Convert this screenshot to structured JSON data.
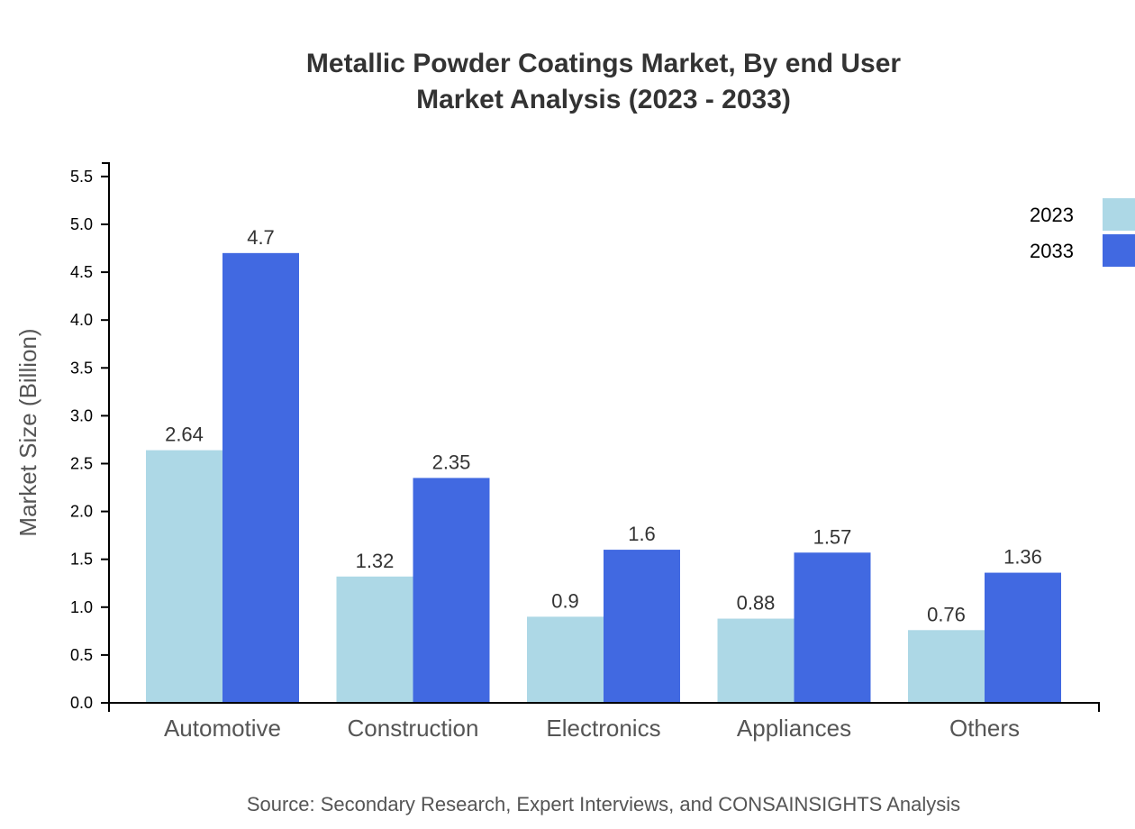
{
  "chart_data": {
    "type": "bar",
    "title": [
      "Metallic Powder Coatings Market, By end User",
      "Market Analysis (2023 - 2033)"
    ],
    "xlabel": "",
    "ylabel": "Market Size (Billion)",
    "categories": [
      "Automotive",
      "Construction",
      "Electronics",
      "Appliances",
      "Others"
    ],
    "series": [
      {
        "name": "2023",
        "color": "#add8e6",
        "values": [
          2.64,
          1.32,
          0.9,
          0.88,
          0.76
        ]
      },
      {
        "name": "2033",
        "color": "#4169e1",
        "values": [
          4.7,
          2.35,
          1.6,
          1.57,
          1.36
        ]
      }
    ],
    "yticks": [
      "0.0",
      "0.5",
      "1.0",
      "1.5",
      "2.0",
      "2.5",
      "3.0",
      "3.5",
      "4.0",
      "4.5",
      "5.0",
      "5.5"
    ],
    "ylim": [
      0,
      5.64
    ],
    "grid": false,
    "legend_position": "top-right",
    "source": "Source: Secondary Research, Expert Interviews, and CONSAINSIGHTS Analysis"
  }
}
